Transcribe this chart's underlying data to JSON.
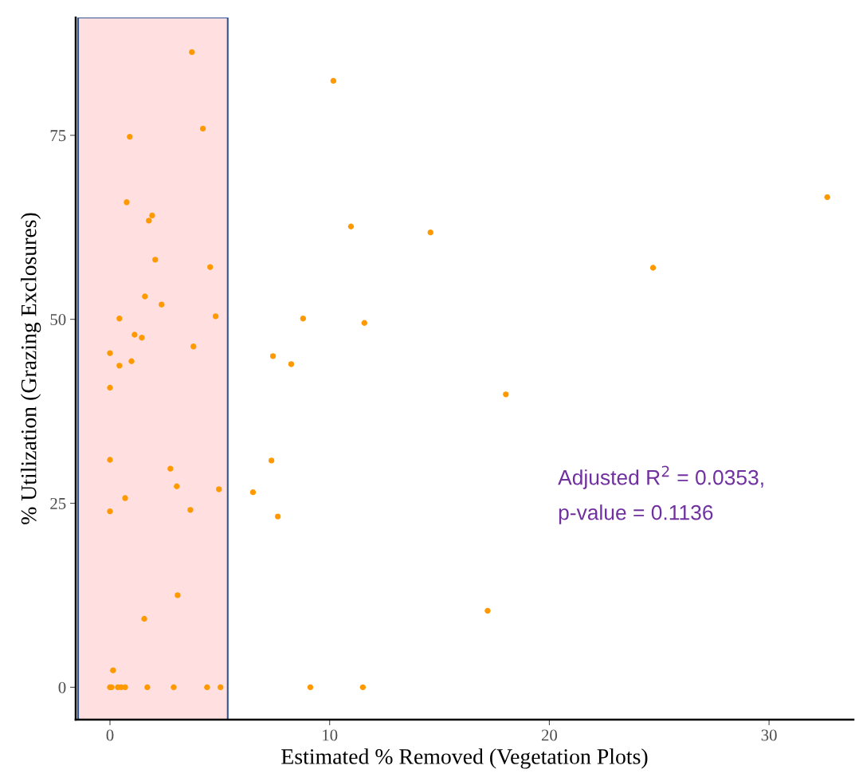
{
  "chart_data": {
    "type": "scatter",
    "xlabel": "Estimated % Removed (Vegetation Plots)",
    "ylabel": "% Utilization (Grazing Exclosures)",
    "x": [
      3.73,
      4.23,
      0.9,
      0.76,
      1.92,
      1.77,
      2.06,
      4.56,
      1.59,
      2.35,
      0.43,
      4.81,
      1.12,
      1.45,
      3.8,
      0,
      0.98,
      0.43,
      0,
      0,
      2.75,
      3.04,
      4.96,
      0.69,
      0,
      3.66,
      3.08,
      1.56,
      0.14,
      0,
      0.07,
      0.36,
      0.51,
      0.69,
      1.7,
      2.9,
      4.42,
      5.03,
      10.17,
      10.97,
      14.59,
      32.65,
      24.72,
      8.79,
      11.58,
      7.42,
      8.25,
      18.02,
      7.35,
      6.51,
      7.64,
      17.19,
      9.12,
      11.51
    ],
    "values": [
      86.3,
      75.9,
      74.8,
      65.9,
      64.1,
      63.4,
      58.1,
      57.1,
      53.1,
      52.0,
      50.1,
      50.4,
      47.9,
      47.5,
      46.3,
      45.4,
      44.3,
      43.7,
      40.7,
      30.9,
      29.7,
      27.3,
      26.9,
      25.7,
      23.9,
      24.1,
      12.5,
      9.3,
      2.3,
      0,
      0,
      0,
      0,
      0,
      0,
      0,
      0,
      0,
      82.4,
      62.6,
      61.8,
      66.6,
      57.0,
      50.1,
      49.5,
      45.0,
      43.9,
      39.8,
      30.8,
      26.5,
      23.2,
      10.4,
      0,
      0
    ],
    "color": "#ff9900",
    "marker": "circle",
    "xlim": [
      -1.56,
      33.84
    ],
    "ylim": [
      -4.4,
      91
    ],
    "xticks": [
      0,
      10,
      20,
      30
    ],
    "yticks": [
      0,
      25,
      50,
      75
    ],
    "grid": false,
    "legend": false,
    "bands": [
      {
        "axis": "x",
        "from": -1.45,
        "to": 5.36,
        "color": "#ffdfe0"
      }
    ],
    "annotations": [
      "Adjusted R$^{2}$ = 0.0353,\np-value = 0.1136"
    ]
  }
}
